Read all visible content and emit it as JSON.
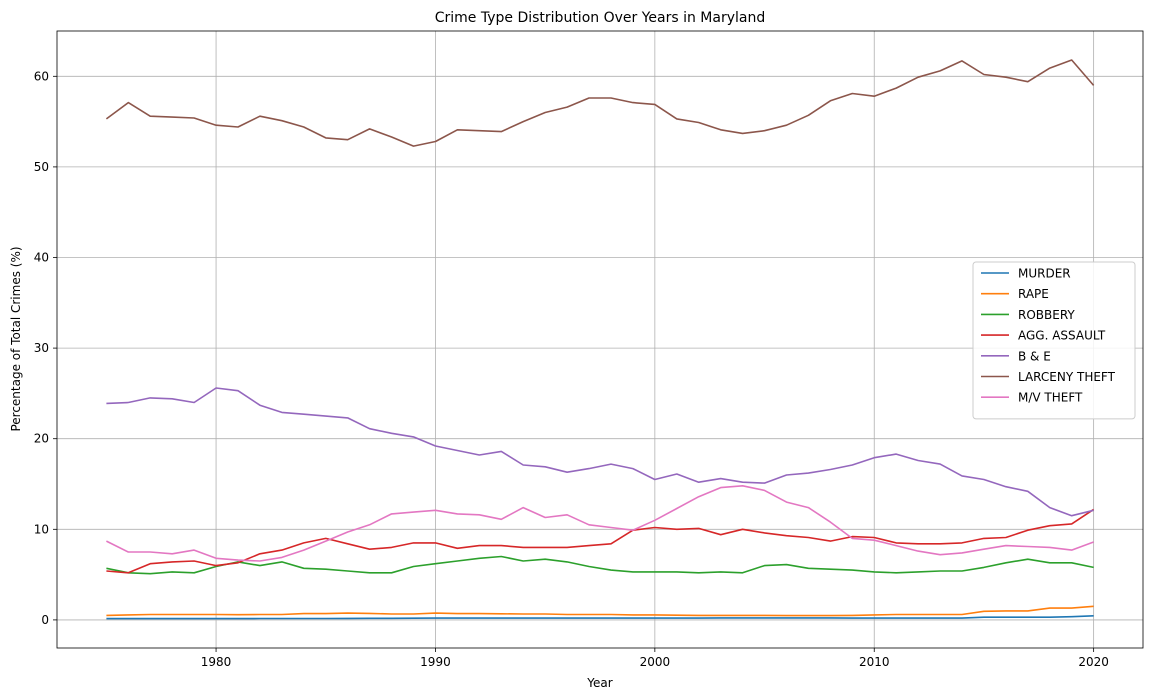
{
  "chart_data": {
    "type": "line",
    "title": "Crime Type Distribution Over Years in Maryland",
    "xlabel": "Year",
    "ylabel": "Percentage of Total Crimes (%)",
    "xlim": [
      1972.75,
      2022.25
    ],
    "ylim": [
      -3.1,
      65
    ],
    "xticks": [
      1980,
      1990,
      2000,
      2010,
      2020
    ],
    "yticks": [
      0,
      10,
      20,
      30,
      40,
      50,
      60
    ],
    "grid": true,
    "legend": "center-right",
    "x": [
      1975,
      1976,
      1977,
      1978,
      1979,
      1980,
      1981,
      1982,
      1983,
      1984,
      1985,
      1986,
      1987,
      1988,
      1989,
      1990,
      1991,
      1992,
      1993,
      1994,
      1995,
      1996,
      1997,
      1998,
      1999,
      2000,
      2001,
      2002,
      2003,
      2004,
      2005,
      2006,
      2007,
      2008,
      2009,
      2010,
      2011,
      2012,
      2013,
      2014,
      2015,
      2016,
      2017,
      2018,
      2019,
      2020
    ],
    "series": [
      {
        "name": "MURDER",
        "color": "#1f77b4",
        "values": [
          0.15,
          0.14,
          0.14,
          0.14,
          0.15,
          0.15,
          0.15,
          0.16,
          0.16,
          0.16,
          0.16,
          0.17,
          0.18,
          0.18,
          0.19,
          0.2,
          0.2,
          0.2,
          0.2,
          0.2,
          0.2,
          0.2,
          0.2,
          0.2,
          0.2,
          0.2,
          0.2,
          0.2,
          0.22,
          0.22,
          0.22,
          0.22,
          0.22,
          0.22,
          0.2,
          0.2,
          0.2,
          0.2,
          0.2,
          0.2,
          0.3,
          0.3,
          0.3,
          0.3,
          0.35,
          0.45
        ]
      },
      {
        "name": "RAPE",
        "color": "#ff7f0e",
        "values": [
          0.5,
          0.55,
          0.6,
          0.6,
          0.6,
          0.6,
          0.58,
          0.6,
          0.6,
          0.7,
          0.7,
          0.75,
          0.72,
          0.65,
          0.65,
          0.75,
          0.7,
          0.7,
          0.68,
          0.65,
          0.65,
          0.6,
          0.6,
          0.6,
          0.55,
          0.55,
          0.52,
          0.5,
          0.5,
          0.5,
          0.5,
          0.48,
          0.48,
          0.48,
          0.5,
          0.55,
          0.6,
          0.6,
          0.6,
          0.6,
          0.95,
          1.0,
          1.0,
          1.3,
          1.3,
          1.5
        ]
      },
      {
        "name": "ROBBERY",
        "color": "#2ca02c",
        "values": [
          5.7,
          5.2,
          5.1,
          5.3,
          5.2,
          5.9,
          6.4,
          6.0,
          6.4,
          5.7,
          5.6,
          5.4,
          5.2,
          5.2,
          5.9,
          6.2,
          6.5,
          6.8,
          7.0,
          6.5,
          6.7,
          6.4,
          5.9,
          5.5,
          5.3,
          5.3,
          5.3,
          5.2,
          5.3,
          5.2,
          6.0,
          6.1,
          5.7,
          5.6,
          5.5,
          5.3,
          5.2,
          5.3,
          5.4,
          5.4,
          5.8,
          6.3,
          6.7,
          6.3,
          6.3,
          5.8
        ]
      },
      {
        "name": "AGG. ASSAULT",
        "color": "#d62728",
        "values": [
          5.4,
          5.2,
          6.2,
          6.4,
          6.5,
          6.0,
          6.3,
          7.3,
          7.7,
          8.5,
          9.0,
          8.4,
          7.8,
          8.0,
          8.5,
          8.5,
          7.9,
          8.2,
          8.2,
          8.0,
          8.0,
          8.0,
          8.2,
          8.4,
          9.9,
          10.2,
          10.0,
          10.1,
          9.4,
          10.0,
          9.6,
          9.3,
          9.1,
          8.7,
          9.2,
          9.1,
          8.5,
          8.4,
          8.4,
          8.5,
          9.0,
          9.1,
          9.9,
          10.4,
          10.6,
          12.2
        ]
      },
      {
        "name": "B & E",
        "color": "#9467bd",
        "values": [
          23.9,
          24.0,
          24.5,
          24.4,
          24.0,
          25.6,
          25.3,
          23.7,
          22.9,
          22.7,
          22.5,
          22.3,
          21.1,
          20.6,
          20.2,
          19.2,
          18.7,
          18.2,
          18.6,
          17.1,
          16.9,
          16.3,
          16.7,
          17.2,
          16.7,
          15.5,
          16.1,
          15.2,
          15.6,
          15.2,
          15.1,
          16.0,
          16.2,
          16.6,
          17.1,
          17.9,
          18.3,
          17.6,
          17.2,
          15.9,
          15.5,
          14.7,
          14.2,
          12.4,
          11.5,
          12.1
        ]
      },
      {
        "name": "LARCENY THEFT",
        "color": "#8c564b",
        "values": [
          55.3,
          57.1,
          55.6,
          55.5,
          55.4,
          54.6,
          54.4,
          55.6,
          55.1,
          54.4,
          53.2,
          53.0,
          54.2,
          53.3,
          52.3,
          52.8,
          54.1,
          54.0,
          53.9,
          55.0,
          56.0,
          56.6,
          57.6,
          57.6,
          57.1,
          56.9,
          55.3,
          54.9,
          54.1,
          53.7,
          54.0,
          54.6,
          55.7,
          57.3,
          58.1,
          57.8,
          58.7,
          59.9,
          60.6,
          61.7,
          60.2,
          59.9,
          59.4,
          60.9,
          61.8,
          59.0
        ]
      },
      {
        "name": "M/V THEFT",
        "color": "#e377c2",
        "values": [
          8.7,
          7.5,
          7.5,
          7.3,
          7.7,
          6.8,
          6.6,
          6.5,
          6.9,
          7.7,
          8.7,
          9.7,
          10.5,
          11.7,
          11.9,
          12.1,
          11.7,
          11.6,
          11.1,
          12.4,
          11.3,
          11.6,
          10.5,
          10.2,
          9.9,
          11.0,
          12.3,
          13.6,
          14.6,
          14.8,
          14.3,
          13.0,
          12.4,
          10.8,
          9.0,
          8.8,
          8.2,
          7.6,
          7.2,
          7.4,
          7.8,
          8.2,
          8.1,
          8.0,
          7.7,
          8.6
        ]
      }
    ]
  }
}
